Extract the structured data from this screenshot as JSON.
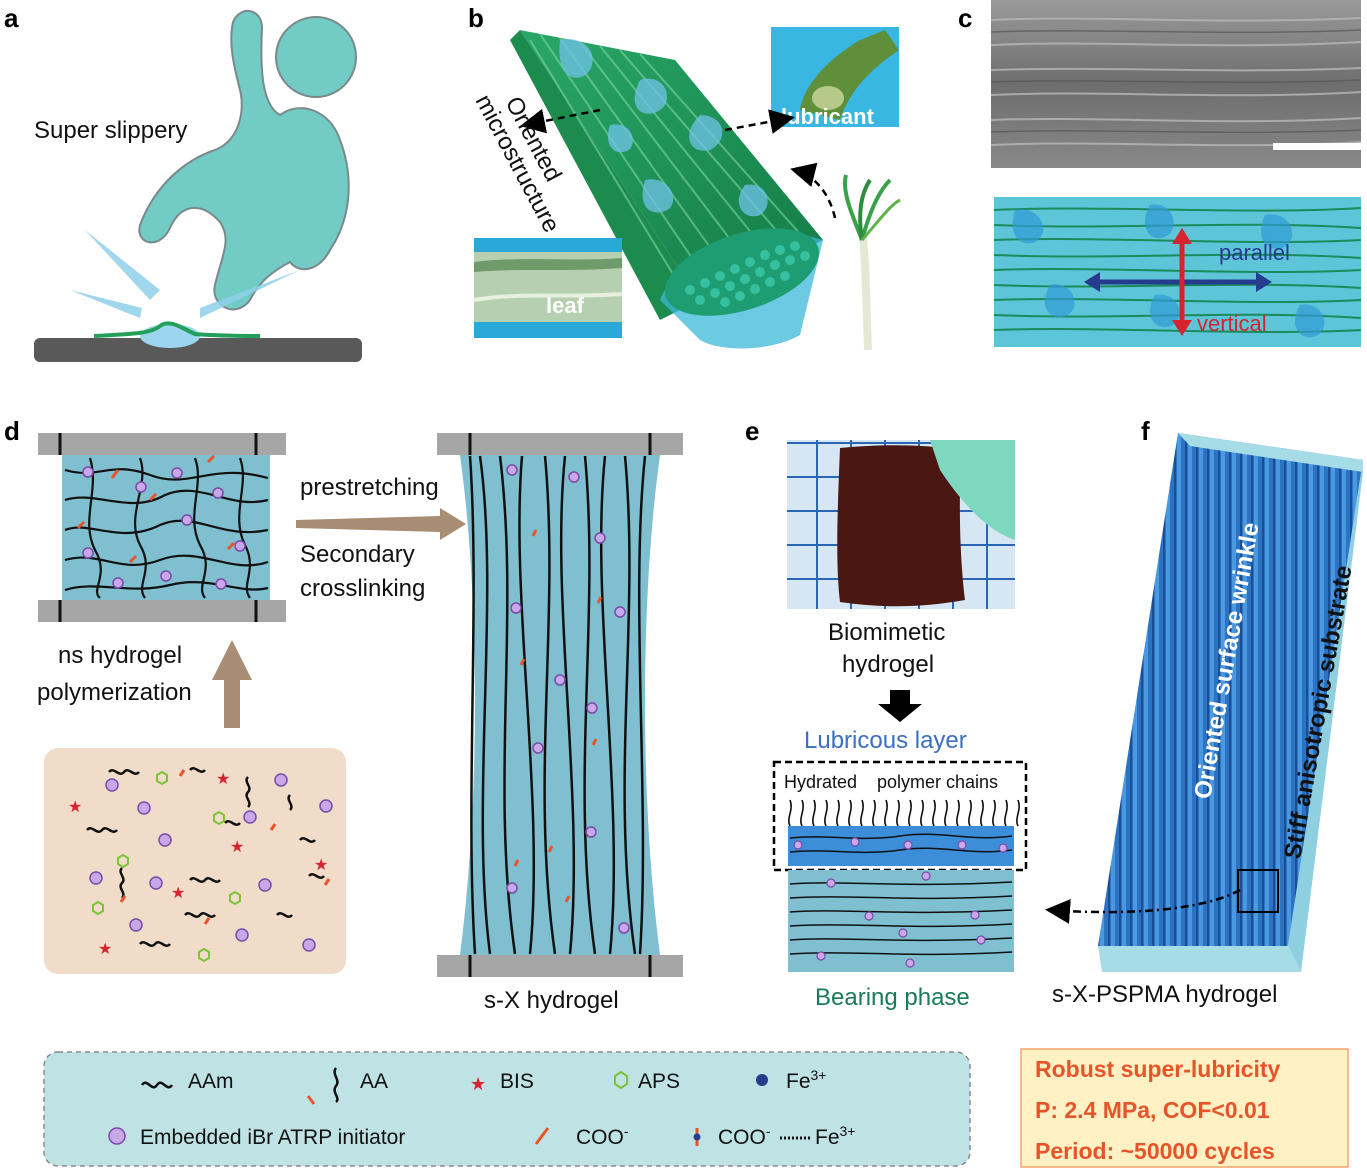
{
  "panels": {
    "a": {
      "letter": "a",
      "label": "Super slippery"
    },
    "b": {
      "letter": "b",
      "oriented_line1": "Oriented",
      "oriented_line2": "microstructure",
      "lubricant": "lubricant",
      "leaf": "leaf"
    },
    "c": {
      "letter": "c",
      "parallel": "parallel",
      "vertical": "vertical"
    },
    "d": {
      "letter": "d",
      "prestretching": "prestretching",
      "secondary_line1": "Secondary",
      "secondary_line2": "crosslinking",
      "ns_line1": "ns hydrogel",
      "ns_line2": "polymerization",
      "sx_label": "s-X hydrogel"
    },
    "e": {
      "letter": "e",
      "biomimetic_line1": "Biomimetic",
      "biomimetic_line2": "hydrogel",
      "lubricous_layer": "Lubricous layer",
      "hydrated": "Hydrated",
      "polymer_chains": "polymer chains",
      "bearing_phase": "Bearing phase"
    },
    "f": {
      "letter": "f",
      "wrinkle": "Oriented surface wrinkle",
      "substrate": "Stiff anisotropic substrate",
      "pspma_label": "s-X-PSPMA hydrogel"
    }
  },
  "legend": {
    "aam": "AAm",
    "aa": "AA",
    "bis": "BIS",
    "aps": "APS",
    "fe": "Fe",
    "fe_sup": "3+",
    "initiator": "Embedded iBr ATRP initiator",
    "coo": "COO",
    "coo_sup": "-",
    "coo_fe": "COO",
    "coo_fe_sup": "-",
    "coo_fe_ion": "Fe",
    "coo_fe_ion_sup": "3+"
  },
  "robust": {
    "line1": "Robust super-lubricity",
    "line2": "P: 2.4 MPa, COF<0.01",
    "line3": "Period: ~50000 cycles"
  },
  "colors": {
    "hydrogel_blue": "#7fbfd0",
    "leaf_green": "#2e9e5a",
    "accent_orange": "#e8542a",
    "dark_blue": "#253b8e",
    "red": "#d6232e",
    "mix_bg": "#f0dcc8",
    "legend_bg": "#bfe3e5",
    "robust_bg": "#fff1c4"
  }
}
